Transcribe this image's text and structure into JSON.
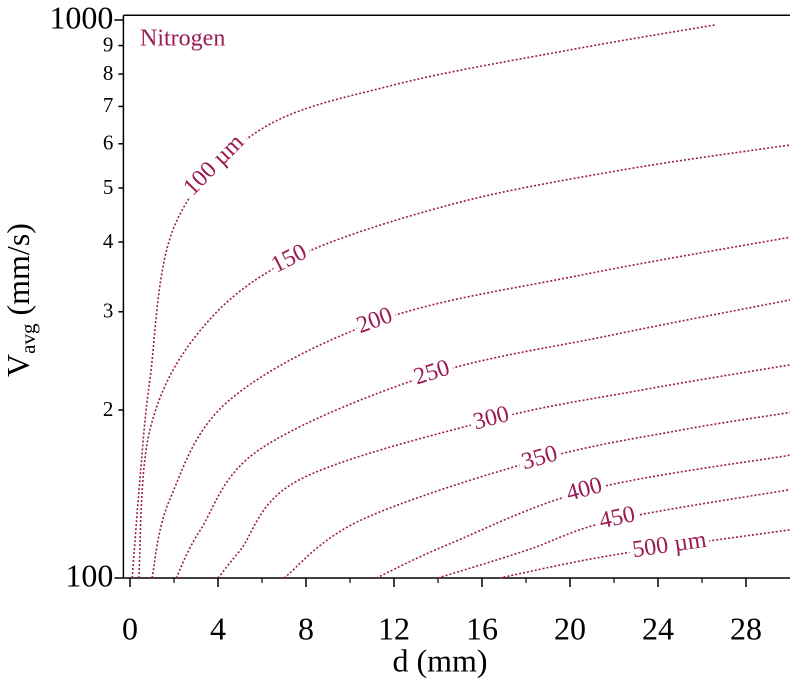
{
  "chart_data": {
    "type": "line",
    "annotation": "Nitrogen",
    "xlabel": "d (mm)",
    "ylabel": [
      "V",
      "avg",
      "(mm/s)"
    ],
    "xlim": [
      -0.3,
      30
    ],
    "ylim": [
      100,
      1020
    ],
    "ylog": true,
    "xticks": [
      0,
      4,
      8,
      12,
      16,
      20,
      24,
      28
    ],
    "xticks_minor": [
      2,
      6,
      10,
      14,
      18,
      22,
      26
    ],
    "yticks": [
      100,
      {
        "value": 200,
        "label": "2"
      },
      {
        "value": 300,
        "label": "3"
      },
      {
        "value": 400,
        "label": "4"
      },
      {
        "value": 500,
        "label": "5"
      },
      {
        "value": 600,
        "label": "6"
      },
      {
        "value": 700,
        "label": "7"
      },
      {
        "value": 800,
        "label": "8"
      },
      {
        "value": 900,
        "label": "9"
      },
      1000
    ],
    "color": "#9b1b52",
    "series": [
      {
        "name": "100 µm",
        "x": [
          0.1,
          0.45,
          0.9,
          2.05,
          5.9,
          12,
          20,
          26.6
        ],
        "values": [
          100,
          150,
          226,
          430,
          635,
          765,
          884,
          980
        ]
      },
      {
        "name": "150",
        "x": [
          0.4,
          0.9,
          3.2,
          7.3,
          14.5,
          22.3,
          30
        ],
        "values": [
          100,
          184,
          278,
          372,
          466,
          538,
          597
        ]
      },
      {
        "name": "200",
        "x": [
          1,
          1.8,
          4.5,
          11.4,
          20.5,
          30
        ],
        "values": [
          100,
          138,
          208,
          290,
          349,
          408
        ]
      },
      {
        "name": "250",
        "x": [
          2.1,
          3.2,
          5.9,
          13.6,
          21.8,
          30
        ],
        "values": [
          100,
          122,
          170,
          231,
          272,
          315
        ]
      },
      {
        "name": "300",
        "x": [
          4,
          5,
          7.7,
          16.4,
          23.2,
          30
        ],
        "values": [
          100,
          112,
          150,
          192,
          217,
          241
        ]
      },
      {
        "name": "350",
        "x": [
          7,
          10.5,
          18.6,
          25,
          30
        ],
        "values": [
          100,
          127,
          163,
          184,
          198
        ]
      },
      {
        "name": "400",
        "x": [
          11.2,
          14.5,
          20.9,
          30
        ],
        "values": [
          100,
          115,
          144,
          166
        ]
      },
      {
        "name": "450",
        "x": [
          14,
          18,
          22,
          30
        ],
        "values": [
          100,
          112,
          127,
          144
        ]
      },
      {
        "name": "500 µm",
        "x": [
          16.8,
          22,
          30
        ],
        "values": [
          100,
          110,
          122
        ]
      }
    ]
  }
}
